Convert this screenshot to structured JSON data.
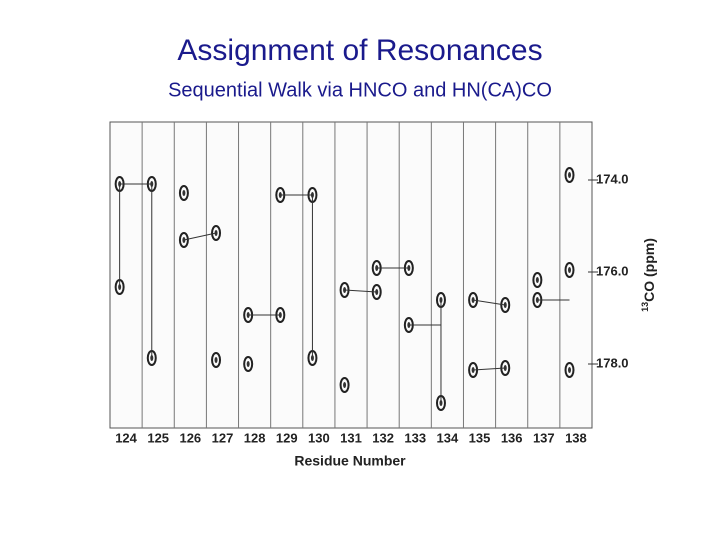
{
  "title": "Assignment of Resonances",
  "subtitle": "Sequential Walk via HNCO and HN(CA)CO",
  "figure": {
    "x_label": "Residue Number",
    "x_ticks": [
      124,
      125,
      126,
      127,
      128,
      129,
      130,
      131,
      132,
      133,
      134,
      135,
      136,
      137,
      138
    ],
    "y_label_sup": "13",
    "y_label": "CO (ppm)",
    "y_ticks": [
      "174.0",
      "176.0",
      "178.0"
    ]
  }
}
